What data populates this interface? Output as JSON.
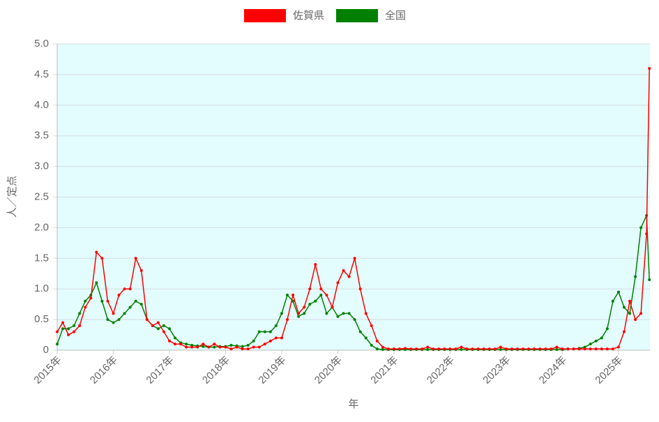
{
  "chart_data": {
    "type": "line",
    "x_label": "年",
    "y_label": "人／定点",
    "x": [
      2015.0,
      2015.1,
      2015.2,
      2015.3,
      2015.4,
      2015.5,
      2015.6,
      2015.7,
      2015.8,
      2015.9,
      2016.0,
      2016.1,
      2016.2,
      2016.3,
      2016.4,
      2016.5,
      2016.6,
      2016.7,
      2016.8,
      2016.9,
      2017.0,
      2017.1,
      2017.2,
      2017.3,
      2017.4,
      2017.5,
      2017.6,
      2017.7,
      2017.8,
      2017.9,
      2018.0,
      2018.1,
      2018.2,
      2018.3,
      2018.4,
      2018.5,
      2018.6,
      2018.7,
      2018.8,
      2018.9,
      2019.0,
      2019.1,
      2019.2,
      2019.3,
      2019.4,
      2019.5,
      2019.6,
      2019.7,
      2019.8,
      2019.9,
      2020.0,
      2020.1,
      2020.2,
      2020.3,
      2020.4,
      2020.5,
      2020.6,
      2020.7,
      2020.8,
      2020.9,
      2021.0,
      2021.1,
      2021.2,
      2021.3,
      2021.4,
      2021.5,
      2021.6,
      2021.7,
      2021.8,
      2021.9,
      2022.0,
      2022.1,
      2022.2,
      2022.3,
      2022.4,
      2022.5,
      2022.6,
      2022.7,
      2022.8,
      2022.9,
      2023.0,
      2023.1,
      2023.2,
      2023.3,
      2023.4,
      2023.5,
      2023.6,
      2023.7,
      2023.8,
      2023.9,
      2024.0,
      2024.1,
      2024.2,
      2024.3,
      2024.4,
      2024.5,
      2024.6,
      2024.7,
      2024.8,
      2024.9,
      2025.0,
      2025.1,
      2025.2,
      2025.3,
      2025.4,
      2025.5,
      2025.55
    ],
    "series": [
      {
        "name": "佐賀県",
        "color": "#ff0000",
        "values": [
          0.3,
          0.45,
          0.25,
          0.3,
          0.4,
          0.7,
          0.85,
          1.6,
          1.5,
          0.8,
          0.6,
          0.9,
          1.0,
          1.0,
          1.5,
          1.3,
          0.5,
          0.4,
          0.45,
          0.3,
          0.15,
          0.1,
          0.1,
          0.05,
          0.05,
          0.05,
          0.1,
          0.05,
          0.1,
          0.05,
          0.05,
          0.02,
          0.05,
          0.02,
          0.02,
          0.05,
          0.05,
          0.1,
          0.15,
          0.2,
          0.2,
          0.5,
          0.9,
          0.6,
          0.7,
          1.0,
          1.4,
          1.0,
          0.9,
          0.7,
          1.1,
          1.3,
          1.2,
          1.5,
          1.0,
          0.6,
          0.4,
          0.15,
          0.05,
          0.02,
          0.02,
          0.02,
          0.03,
          0.02,
          0.02,
          0.02,
          0.05,
          0.02,
          0.02,
          0.02,
          0.02,
          0.02,
          0.05,
          0.02,
          0.02,
          0.02,
          0.02,
          0.02,
          0.02,
          0.05,
          0.02,
          0.02,
          0.02,
          0.02,
          0.02,
          0.02,
          0.02,
          0.02,
          0.02,
          0.05,
          0.02,
          0.02,
          0.02,
          0.02,
          0.02,
          0.02,
          0.02,
          0.02,
          0.02,
          0.02,
          0.05,
          0.3,
          0.8,
          0.5,
          0.6,
          1.9,
          4.6
        ]
      },
      {
        "name": "全国",
        "color": "#008000",
        "values": [
          0.1,
          0.35,
          0.35,
          0.4,
          0.6,
          0.8,
          0.9,
          1.1,
          0.8,
          0.5,
          0.45,
          0.5,
          0.6,
          0.7,
          0.8,
          0.75,
          0.5,
          0.4,
          0.35,
          0.4,
          0.35,
          0.2,
          0.12,
          0.1,
          0.08,
          0.07,
          0.06,
          0.05,
          0.05,
          0.06,
          0.06,
          0.08,
          0.07,
          0.06,
          0.08,
          0.15,
          0.3,
          0.3,
          0.3,
          0.4,
          0.6,
          0.9,
          0.8,
          0.55,
          0.6,
          0.75,
          0.8,
          0.9,
          0.6,
          0.7,
          0.55,
          0.6,
          0.6,
          0.5,
          0.3,
          0.2,
          0.08,
          0.02,
          0.01,
          0.01,
          0.01,
          0.01,
          0.01,
          0.01,
          0.01,
          0.01,
          0.01,
          0.01,
          0.01,
          0.01,
          0.01,
          0.01,
          0.01,
          0.01,
          0.01,
          0.01,
          0.01,
          0.01,
          0.01,
          0.01,
          0.01,
          0.01,
          0.01,
          0.01,
          0.01,
          0.01,
          0.01,
          0.01,
          0.01,
          0.01,
          0.01,
          0.02,
          0.02,
          0.03,
          0.05,
          0.1,
          0.15,
          0.2,
          0.35,
          0.8,
          0.95,
          0.7,
          0.6,
          1.2,
          2.0,
          2.2,
          1.15
        ]
      }
    ],
    "xlim": [
      2015,
      2025.56
    ],
    "xticks": [
      {
        "value": 2015,
        "label": "2015年"
      },
      {
        "value": 2016,
        "label": "2016年"
      },
      {
        "value": 2017,
        "label": "2017年"
      },
      {
        "value": 2018,
        "label": "2018年"
      },
      {
        "value": 2019,
        "label": "2019年"
      },
      {
        "value": 2020,
        "label": "2020年"
      },
      {
        "value": 2021,
        "label": "2021年"
      },
      {
        "value": 2022,
        "label": "2022年"
      },
      {
        "value": 2023,
        "label": "2023年"
      },
      {
        "value": 2024,
        "label": "2024年"
      },
      {
        "value": 2025,
        "label": "2025年"
      }
    ],
    "ylim": [
      0,
      5
    ],
    "yticks": [
      0,
      0.5,
      {
        "value": 1,
        "label": "1.0"
      },
      1.5,
      {
        "value": 2,
        "label": "2.0"
      },
      2.5,
      {
        "value": 3,
        "label": "3.0"
      },
      3.5,
      {
        "value": 4,
        "label": "4.0"
      },
      4.5,
      {
        "value": 5,
        "label": "5.0"
      }
    ],
    "grid": true,
    "legend": "top",
    "plot_background": "#e3fcfd"
  }
}
